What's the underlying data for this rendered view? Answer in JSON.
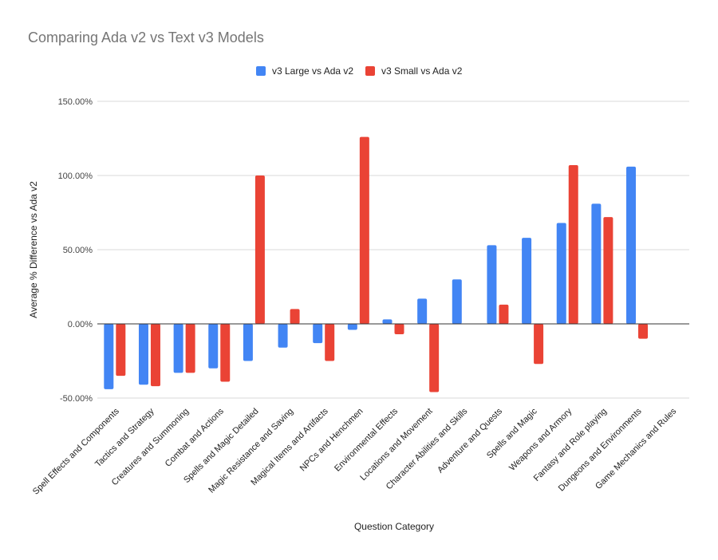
{
  "chart_data": {
    "type": "bar",
    "title": "Comparing Ada v2 vs Text v3 Models",
    "xlabel": "Question Category",
    "ylabel": "Average % Difference vs Ada v2",
    "ylim": [
      -50,
      150
    ],
    "yticks": [
      -50,
      0,
      50,
      100,
      150
    ],
    "ytick_labels": [
      "-50.00%",
      "0.00%",
      "50.00%",
      "100.00%",
      "150.00%"
    ],
    "grid": true,
    "legend_position": "top",
    "categories": [
      "Spell Effects and Components",
      "Tactics and Strategy",
      "Creatures and Summoning",
      "Combat and Actions",
      "Spells and Magic Detailed",
      "Magic Resistance and Saving",
      "Magical Items and Artifacts",
      "NPCs and Henchmen",
      "Environmental Effects",
      "Locations and Movement",
      "Character Abilities and Skills",
      "Adventure and Quests",
      "Spells and Magic",
      "Weapons and Armory",
      "Fantasy and Role playing",
      "Dungeons and Environments",
      "Game Mechanics and Rules"
    ],
    "series": [
      {
        "name": "v3 Large vs Ada v2",
        "color": "#4285f4",
        "values": [
          -44,
          -41,
          -33,
          -30,
          -25,
          -16,
          -13,
          -4,
          3,
          17,
          30,
          53,
          58,
          68,
          81,
          106,
          null
        ]
      },
      {
        "name": "v3 Small vs Ada v2",
        "color": "#ea4335",
        "values": [
          -35,
          -42,
          -33,
          -39,
          100,
          10,
          -25,
          126,
          -7,
          -46,
          null,
          13,
          -27,
          107,
          72,
          -10,
          null
        ]
      }
    ]
  }
}
